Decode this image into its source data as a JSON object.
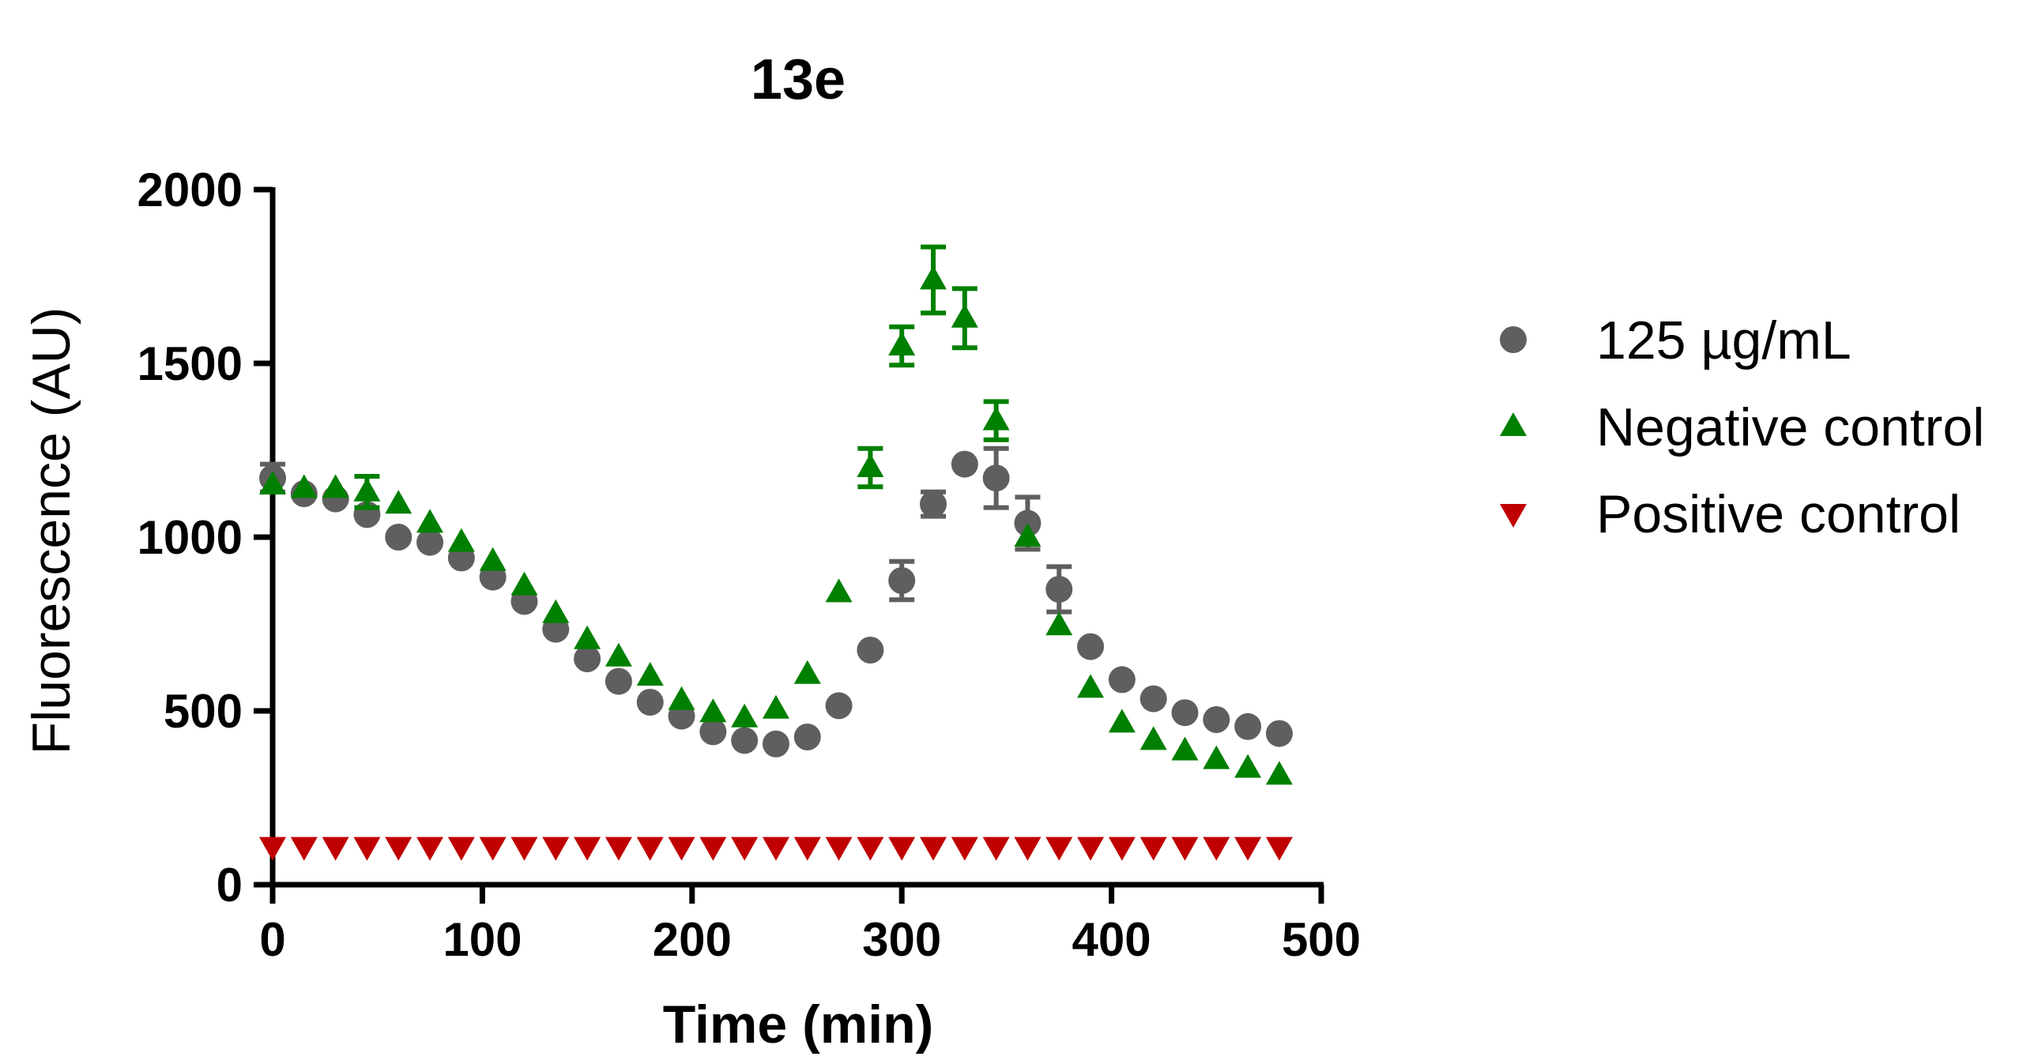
{
  "chart_data": {
    "type": "scatter",
    "title": "13e",
    "xlabel": "Time (min)",
    "ylabel": "Fluorescence (AU)",
    "xlim": [
      0,
      500
    ],
    "ylim": [
      0,
      2000
    ],
    "xticks": [
      0,
      100,
      200,
      300,
      400,
      500
    ],
    "yticks": [
      0,
      500,
      1000,
      1500,
      2000
    ],
    "x": [
      0,
      15,
      30,
      45,
      60,
      75,
      90,
      105,
      120,
      135,
      150,
      165,
      180,
      195,
      210,
      225,
      240,
      255,
      270,
      285,
      300,
      315,
      330,
      345,
      360,
      375,
      390,
      405,
      420,
      435,
      450,
      465,
      480
    ],
    "legend_position": "right",
    "series": [
      {
        "name": "125 µg/mL",
        "marker": "circle",
        "color": "#5f5f5f",
        "values": [
          1170,
          1125,
          1110,
          1065,
          1000,
          985,
          940,
          885,
          815,
          735,
          650,
          585,
          525,
          485,
          440,
          415,
          405,
          425,
          515,
          675,
          875,
          1095,
          1210,
          1170,
          1040,
          850,
          685,
          590,
          535,
          495,
          475,
          455,
          435
        ],
        "errors": [
          40,
          0,
          0,
          0,
          0,
          0,
          0,
          0,
          0,
          0,
          0,
          0,
          0,
          0,
          0,
          0,
          0,
          0,
          0,
          0,
          55,
          35,
          0,
          85,
          75,
          65,
          0,
          0,
          0,
          0,
          0,
          0,
          0
        ]
      },
      {
        "name": "Negative control",
        "marker": "triangle-up",
        "color": "#008000",
        "values": [
          1150,
          1140,
          1140,
          1130,
          1095,
          1040,
          985,
          930,
          860,
          780,
          705,
          655,
          600,
          530,
          495,
          480,
          505,
          605,
          840,
          1200,
          1550,
          1740,
          1630,
          1335,
          1000,
          745,
          565,
          465,
          415,
          385,
          360,
          335,
          315
        ],
        "errors": [
          0,
          0,
          0,
          45,
          0,
          0,
          0,
          0,
          0,
          0,
          0,
          0,
          0,
          0,
          0,
          0,
          0,
          0,
          0,
          55,
          55,
          95,
          85,
          55,
          0,
          0,
          0,
          0,
          0,
          0,
          0,
          0,
          0
        ]
      },
      {
        "name": "Positive control",
        "marker": "triangle-down",
        "color": "#c00000",
        "values": [
          110,
          110,
          110,
          110,
          110,
          110,
          110,
          110,
          110,
          110,
          110,
          110,
          110,
          110,
          110,
          110,
          110,
          110,
          110,
          110,
          110,
          110,
          110,
          110,
          110,
          110,
          110,
          110,
          110,
          110,
          110,
          110,
          110
        ],
        "errors": [
          0,
          0,
          0,
          0,
          0,
          0,
          0,
          0,
          0,
          0,
          0,
          0,
          0,
          0,
          0,
          0,
          0,
          0,
          0,
          0,
          0,
          0,
          0,
          0,
          0,
          0,
          0,
          0,
          0,
          0,
          0,
          0,
          0
        ]
      }
    ]
  }
}
